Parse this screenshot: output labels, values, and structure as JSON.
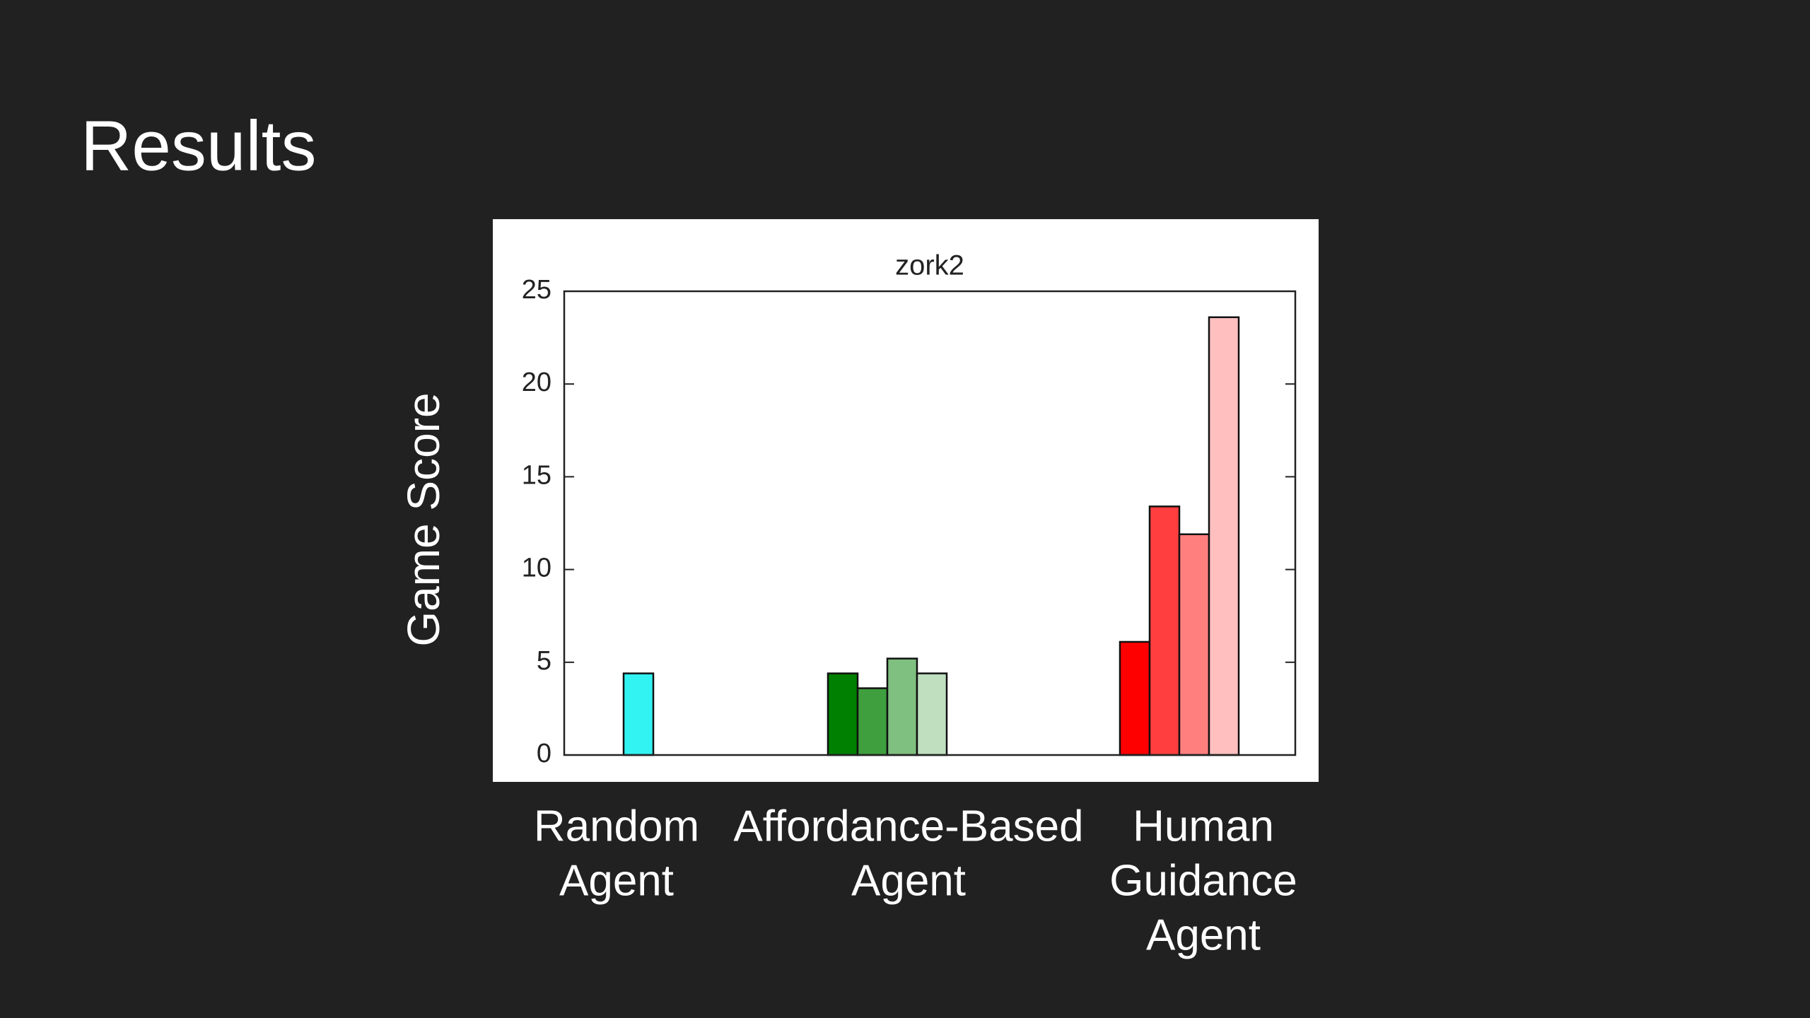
{
  "title": "Results",
  "chart_data": {
    "type": "bar",
    "title": "zork2",
    "y_label": "Game Score",
    "ylim": [
      0,
      25
    ],
    "yticks": [
      0,
      5,
      10,
      15,
      20,
      25
    ],
    "groups": [
      {
        "label": [
          "Random",
          "Agent"
        ],
        "values": [
          4.4
        ],
        "colors": [
          "#33f2f2"
        ]
      },
      {
        "label": [
          "Affordance-Based",
          "Agent"
        ],
        "values": [
          4.4,
          3.6,
          5.2,
          4.4
        ],
        "colors": [
          "#008000",
          "#3f9f3f",
          "#7fbf7f",
          "#bfdfbf"
        ]
      },
      {
        "label": [
          "Human",
          "Guidance",
          "Agent"
        ],
        "values": [
          6.1,
          13.4,
          11.9,
          23.6
        ],
        "colors": [
          "#ff0000",
          "#ff3f3f",
          "#ff7f7f",
          "#ffbfbf"
        ]
      }
    ]
  }
}
